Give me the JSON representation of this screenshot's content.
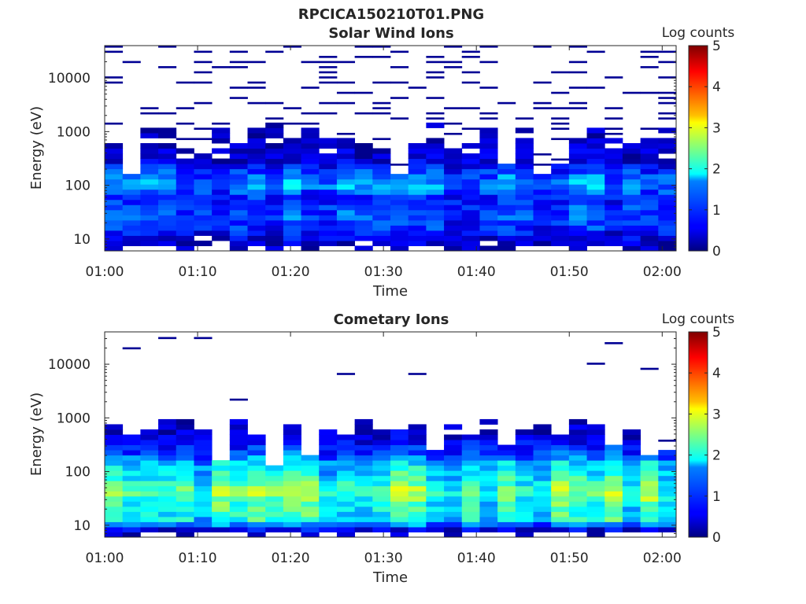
{
  "figure": {
    "title": "RPCICA150210T01.PNG"
  },
  "panels": [
    {
      "id": "solar",
      "title": "Solar Wind Ions",
      "xlabel": "Time",
      "ylabel": "Energy (eV)",
      "colorbar_label": "Log counts"
    },
    {
      "id": "comet",
      "title": "Cometary Ions",
      "xlabel": "Time",
      "ylabel": "Energy (eV)",
      "colorbar_label": "Log counts"
    }
  ],
  "chart_data": [
    {
      "type": "heatmap",
      "title": "Solar Wind Ions",
      "xlabel": "Time",
      "ylabel": "Energy (eV)",
      "x_ticks": [
        "01:00",
        "01:10",
        "01:20",
        "01:30",
        "01:40",
        "01:50",
        "02:00"
      ],
      "y_ticks": [
        "10",
        "100",
        "1000",
        "10000"
      ],
      "yscale": "log",
      "ylim": [
        6,
        40000
      ],
      "colorbar": {
        "label": "Log counts",
        "ticks": [
          "0",
          "1",
          "2",
          "3",
          "4",
          "5"
        ],
        "range": [
          0,
          5
        ],
        "colormap": "jet"
      },
      "time_bins_min": 32,
      "energy_profile_log_counts": [
        {
          "energy_eV": 8,
          "log_counts": 0.3
        },
        {
          "energy_eV": 15,
          "log_counts": 0.8
        },
        {
          "energy_eV": 30,
          "log_counts": 1.0
        },
        {
          "energy_eV": 60,
          "log_counts": 0.8
        },
        {
          "energy_eV": 100,
          "log_counts": 1.4
        },
        {
          "energy_eV": 150,
          "log_counts": 1.1
        },
        {
          "energy_eV": 300,
          "log_counts": 0.4
        },
        {
          "energy_eV": 700,
          "log_counts": 0.2
        },
        {
          "energy_eV": 3000,
          "log_counts": 0.1
        },
        {
          "energy_eV": 20000,
          "log_counts": 0.1
        }
      ]
    },
    {
      "type": "heatmap",
      "title": "Cometary Ions",
      "xlabel": "Time",
      "ylabel": "Energy (eV)",
      "x_ticks": [
        "01:00",
        "01:10",
        "01:20",
        "01:30",
        "01:40",
        "01:50",
        "02:00"
      ],
      "y_ticks": [
        "10",
        "100",
        "1000",
        "10000"
      ],
      "yscale": "log",
      "ylim": [
        6,
        40000
      ],
      "colorbar": {
        "label": "Log counts",
        "ticks": [
          "0",
          "1",
          "2",
          "3",
          "4",
          "5"
        ],
        "range": [
          0,
          5
        ],
        "colormap": "jet"
      },
      "time_bins_min": 32,
      "energy_profile_log_counts": [
        {
          "energy_eV": 7,
          "log_counts": 0.2
        },
        {
          "energy_eV": 9,
          "log_counts": 0.6
        },
        {
          "energy_eV": 12,
          "log_counts": 1.8
        },
        {
          "energy_eV": 25,
          "log_counts": 2.0
        },
        {
          "energy_eV": 40,
          "log_counts": 2.4
        },
        {
          "energy_eV": 80,
          "log_counts": 1.9
        },
        {
          "energy_eV": 150,
          "log_counts": 1.5
        },
        {
          "energy_eV": 250,
          "log_counts": 0.8
        },
        {
          "energy_eV": 600,
          "log_counts": 0.3
        },
        {
          "energy_eV": 3000,
          "log_counts": 0.1
        }
      ]
    }
  ]
}
